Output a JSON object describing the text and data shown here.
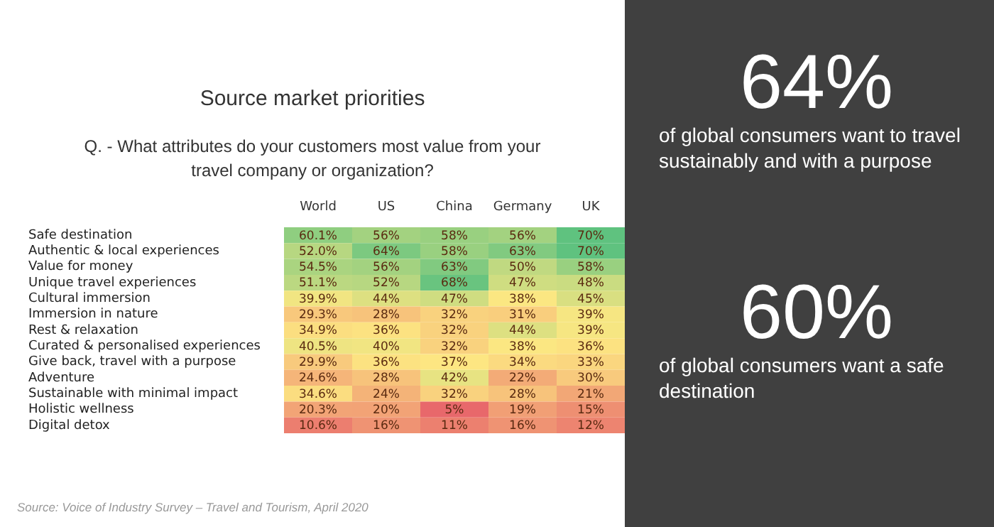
{
  "chart_data": [
    {
      "type": "heatmap",
      "title": "Source market priorities",
      "subtitle": "Q. - What attributes do your customers most value from your travel company or organization?",
      "categories": [
        "World",
        "US",
        "China",
        "Germany",
        "UK"
      ],
      "y_categories": [
        "Safe destination",
        "Authentic & local experiences",
        "Value for money",
        "Unique travel experiences",
        "Cultural immersion",
        "Immersion in nature",
        "Rest & relaxation",
        "Curated & personalised experiences",
        "Give back, travel with a purpose",
        "Adventure",
        "Sustainable with minimal impact",
        "Holistic wellness",
        "Digital detox"
      ],
      "cells": [
        [
          60.1,
          56,
          58,
          56,
          70
        ],
        [
          52.0,
          64,
          58,
          63,
          70
        ],
        [
          54.5,
          56,
          63,
          50,
          58
        ],
        [
          51.1,
          52,
          68,
          47,
          48
        ],
        [
          39.9,
          44,
          47,
          38,
          45
        ],
        [
          29.3,
          28,
          32,
          31,
          39
        ],
        [
          34.9,
          36,
          32,
          44,
          39
        ],
        [
          40.5,
          40,
          32,
          38,
          36
        ],
        [
          29.9,
          36,
          37,
          34,
          33
        ],
        [
          24.6,
          28,
          42,
          22,
          30
        ],
        [
          34.6,
          24,
          32,
          28,
          21
        ],
        [
          20.3,
          20,
          5,
          19,
          15
        ],
        [
          10.6,
          16,
          11,
          16,
          12
        ]
      ],
      "cell_labels": [
        [
          "60.1%",
          "56%",
          "58%",
          "56%",
          "70%"
        ],
        [
          "52.0%",
          "64%",
          "58%",
          "63%",
          "70%"
        ],
        [
          "54.5%",
          "56%",
          "63%",
          "50%",
          "58%"
        ],
        [
          "51.1%",
          "52%",
          "68%",
          "47%",
          "48%"
        ],
        [
          "39.9%",
          "44%",
          "47%",
          "38%",
          "45%"
        ],
        [
          "29.3%",
          "28%",
          "32%",
          "31%",
          "39%"
        ],
        [
          "34.9%",
          "36%",
          "32%",
          "44%",
          "39%"
        ],
        [
          "40.5%",
          "40%",
          "32%",
          "38%",
          "36%"
        ],
        [
          "29.9%",
          "36%",
          "37%",
          "34%",
          "33%"
        ],
        [
          "24.6%",
          "28%",
          "42%",
          "22%",
          "30%"
        ],
        [
          "34.6%",
          "24%",
          "32%",
          "28%",
          "21%"
        ],
        [
          "20.3%",
          "20%",
          "5%",
          "19%",
          "15%"
        ],
        [
          "10.6%",
          "16%",
          "11%",
          "16%",
          "12%"
        ]
      ],
      "annotations": [
        "Source: Voice of Industry Survey – Travel and Tourism, April 2020"
      ]
    },
    {
      "type": "other",
      "annotations": [
        "64%",
        "of global consumers want to travel sustainably and with a purpose",
        "60%",
        "of global consumers want a safe destination"
      ]
    }
  ]
}
